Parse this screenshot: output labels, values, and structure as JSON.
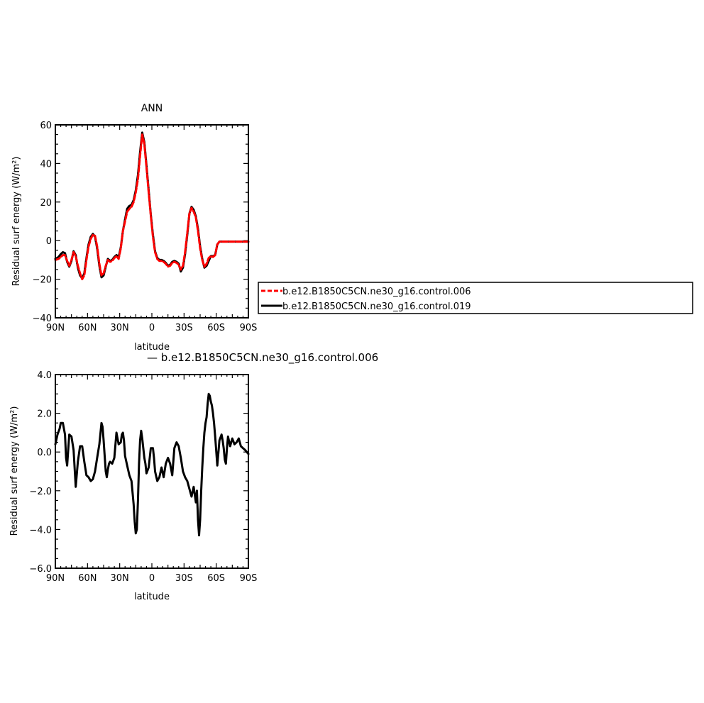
{
  "chart_data": [
    {
      "type": "line",
      "title": "ANN",
      "xlabel": "latitude",
      "ylabel": "Residual surf energy (W/m²)",
      "xlim": [
        90,
        -90
      ],
      "ylim": [
        -40,
        60
      ],
      "xticks": [
        90,
        60,
        30,
        0,
        -30,
        -60,
        -90
      ],
      "xticklabels": [
        "90N",
        "60N",
        "30N",
        "0",
        "30S",
        "60S",
        "90S"
      ],
      "yticks": [
        -40,
        -20,
        0,
        20,
        40,
        60
      ],
      "yticklabels": [
        "−40",
        "−20",
        "0",
        "20",
        "40",
        "60"
      ],
      "legend_position": "right",
      "series": [
        {
          "name": "b.e12.B1850C5CN.ne30_g16.control.006",
          "color": "#ff0000",
          "dash": "dashed",
          "x": [
            90,
            87,
            85,
            83,
            81,
            79,
            77,
            75,
            73,
            71,
            69,
            67,
            65,
            63,
            61,
            59,
            57,
            55,
            53,
            51,
            49,
            47,
            45,
            43,
            41,
            39,
            37,
            35,
            33,
            31,
            29,
            27,
            25,
            23,
            21,
            19,
            17,
            15,
            13,
            11,
            9,
            7,
            5,
            3,
            1,
            -1,
            -3,
            -5,
            -7,
            -9,
            -11,
            -13,
            -15,
            -17,
            -19,
            -21,
            -23,
            -25,
            -27,
            -29,
            -31,
            -33,
            -35,
            -37,
            -39,
            -41,
            -43,
            -45,
            -47,
            -49,
            -51,
            -53,
            -55,
            -57,
            -59,
            -61,
            -63,
            -65,
            -67,
            -69,
            -71,
            -73,
            -75,
            -77,
            -79,
            -81,
            -83,
            -85,
            -87,
            -90
          ],
          "y": [
            -10,
            -9.5,
            -8.5,
            -7.5,
            -7.5,
            -10.5,
            -13,
            -10,
            -6,
            -8,
            -13,
            -17,
            -20,
            -18,
            -10,
            -3,
            1,
            3,
            2.5,
            -3,
            -12,
            -18,
            -17,
            -13,
            -10,
            -11,
            -10.5,
            -9,
            -8,
            -9.5,
            -4,
            5,
            10,
            15,
            16.5,
            17.5,
            20,
            25,
            32,
            44,
            55,
            50,
            38,
            25,
            13,
            2,
            -6,
            -9.5,
            -10.5,
            -10.5,
            -11,
            -12,
            -13.5,
            -13,
            -11.5,
            -11,
            -11.5,
            -12.5,
            -15,
            -13,
            -6,
            4,
            14,
            17,
            15,
            12,
            5,
            -4,
            -10,
            -13.5,
            -12,
            -9,
            -8,
            -8.5,
            -7.5,
            -2,
            -0.5,
            -0.5,
            -0.5,
            -0.5,
            -0.5,
            -0.5,
            -0.5,
            -0.5,
            -0.5,
            -0.5,
            -0.5,
            -0.5,
            -0.5,
            -0.5
          ]
        },
        {
          "name": "b.e12.B1850C5CN.ne30_g16.control.019",
          "color": "#000000",
          "dash": "solid",
          "x": [
            90,
            87,
            85,
            83,
            81,
            79,
            77,
            75,
            73,
            71,
            69,
            67,
            65,
            63,
            61,
            59,
            57,
            55,
            53,
            51,
            49,
            47,
            45,
            43,
            41,
            39,
            37,
            35,
            33,
            31,
            29,
            27,
            25,
            23,
            21,
            19,
            17,
            15,
            13,
            11,
            9,
            7,
            5,
            3,
            1,
            -1,
            -3,
            -5,
            -7,
            -9,
            -11,
            -13,
            -15,
            -17,
            -19,
            -21,
            -23,
            -25,
            -27,
            -29,
            -31,
            -33,
            -35,
            -37,
            -39,
            -41,
            -43,
            -45,
            -47,
            -49,
            -51,
            -53,
            -55,
            -57,
            -59,
            -61,
            -63,
            -65,
            -67,
            -69,
            -71,
            -73,
            -75,
            -77,
            -79,
            -81,
            -83,
            -85,
            -87,
            -90
          ],
          "y": [
            -9.5,
            -8.5,
            -7,
            -6,
            -6.5,
            -11,
            -13.5,
            -10.5,
            -5.5,
            -7.5,
            -14,
            -18,
            -19.5,
            -17,
            -9,
            -2,
            2,
            3.5,
            2,
            -4,
            -13,
            -19,
            -18,
            -13.5,
            -9.5,
            -10.5,
            -10,
            -8.5,
            -7.5,
            -8.5,
            -3.5,
            5,
            11,
            16.5,
            18,
            18.5,
            21,
            26,
            34,
            46,
            56,
            51,
            39,
            26,
            13.5,
            3,
            -5.5,
            -9,
            -10,
            -10,
            -10.5,
            -11.5,
            -13,
            -12.5,
            -11,
            -10.5,
            -11,
            -12,
            -16,
            -14,
            -7,
            3,
            14,
            17.5,
            16,
            12.5,
            6,
            -3,
            -9.5,
            -14,
            -13,
            -10.5,
            -8,
            -8,
            -7.5,
            -2,
            -0.5,
            -0.5,
            -0.5,
            -0.5,
            -0.5,
            -0.5,
            -0.5,
            -0.5,
            -0.5,
            -0.5,
            -0.5,
            -0.5,
            -0.5,
            -0.5
          ]
        }
      ]
    },
    {
      "type": "line",
      "title": "— b.e12.B1850C5CN.ne30_g16.control.006",
      "xlabel": "latitude",
      "ylabel": "Residual surf energy (W/m²)",
      "xlim": [
        90,
        -90
      ],
      "ylim": [
        -6,
        4
      ],
      "xticks": [
        90,
        60,
        30,
        0,
        -30,
        -60,
        -90
      ],
      "xticklabels": [
        "90N",
        "60N",
        "30N",
        "0",
        "30S",
        "60S",
        "90S"
      ],
      "yticks": [
        -6,
        -4,
        -2,
        0,
        2,
        4
      ],
      "yticklabels": [
        "−6.0",
        "−4.0",
        "−2.0",
        "0.0",
        "2.0",
        "4.0"
      ],
      "series": [
        {
          "color": "#000000",
          "dash": "solid",
          "x": [
            90,
            88,
            86,
            85,
            83,
            81,
            80,
            79,
            77,
            75,
            73,
            71,
            69,
            67,
            65,
            63,
            61,
            59,
            57,
            55,
            53,
            51,
            49,
            47,
            46,
            45,
            44,
            43,
            42,
            41,
            40,
            39,
            37,
            35,
            33,
            32,
            31,
            29,
            28,
            27,
            26,
            25,
            23,
            21,
            19,
            17,
            16,
            15,
            14,
            13,
            12,
            11,
            10,
            9,
            8,
            7,
            6,
            5,
            3,
            1,
            -1,
            -2,
            -3,
            -5,
            -7,
            -9,
            -11,
            -13,
            -15,
            -17,
            -19,
            -21,
            -23,
            -25,
            -27,
            -29,
            -31,
            -33,
            -35,
            -37,
            -39,
            -41,
            -42,
            -43,
            -44,
            -45,
            -46,
            -47,
            -48,
            -49,
            -50,
            -51,
            -52,
            -53,
            -54,
            -55,
            -56,
            -57,
            -58,
            -59,
            -61,
            -63,
            -65,
            -66,
            -67,
            -68,
            -69,
            -70,
            -71,
            -73,
            -75,
            -77,
            -79,
            -81,
            -83,
            -85,
            -87,
            -90
          ],
          "y": [
            0.4,
            0.9,
            1.2,
            1.5,
            1.5,
            0.9,
            -0.3,
            -0.7,
            0.9,
            0.8,
            0.1,
            -1.8,
            -0.5,
            0.3,
            0.3,
            -0.5,
            -1.2,
            -1.3,
            -1.5,
            -1.4,
            -1.0,
            -0.3,
            0.4,
            1.5,
            1.3,
            0.6,
            -0.2,
            -1.0,
            -1.3,
            -0.9,
            -0.6,
            -0.5,
            -0.6,
            -0.3,
            1.0,
            0.7,
            0.4,
            0.5,
            0.9,
            1.0,
            0.6,
            -0.2,
            -0.7,
            -1.2,
            -1.5,
            -2.7,
            -3.6,
            -4.2,
            -4.0,
            -2.5,
            -0.6,
            0.6,
            1.1,
            0.7,
            0.2,
            -0.3,
            -0.6,
            -1.1,
            -0.8,
            0.2,
            0.2,
            -0.3,
            -1.0,
            -1.5,
            -1.3,
            -0.8,
            -1.3,
            -0.6,
            -0.3,
            -0.6,
            -1.2,
            0.2,
            0.5,
            0.3,
            -0.3,
            -1.0,
            -1.3,
            -1.5,
            -1.9,
            -2.3,
            -1.8,
            -2.6,
            -2.0,
            -3.5,
            -4.3,
            -3.5,
            -2.0,
            -0.8,
            0.2,
            1.0,
            1.5,
            1.8,
            2.5,
            3.0,
            2.9,
            2.6,
            2.4,
            2.0,
            1.5,
            0.8,
            -0.7,
            0.6,
            0.9,
            0.6,
            0.2,
            -0.4,
            -0.6,
            0.2,
            0.8,
            0.3,
            0.7,
            0.4,
            0.5,
            0.7,
            0.3,
            0.2,
            0.1,
            -0.1
          ]
        }
      ]
    }
  ]
}
